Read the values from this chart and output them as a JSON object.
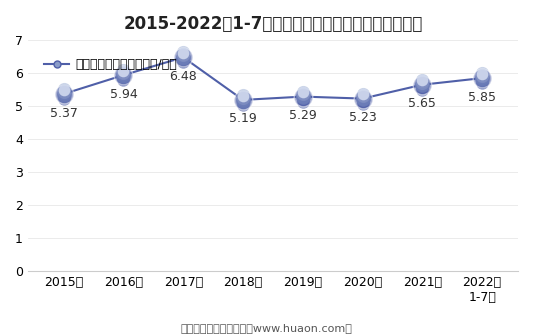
{
  "title": "2015-2022年1-7月郑州商品交易所白糖期货成交均价",
  "legend_label": "白糖期货成交均价（万元/手）",
  "x_labels": [
    "2015年",
    "2016年",
    "2017年",
    "2018年",
    "2019年",
    "2020年",
    "2021年",
    "2022年\n1-7月"
  ],
  "values": [
    5.37,
    5.94,
    6.48,
    5.19,
    5.29,
    5.23,
    5.65,
    5.85
  ],
  "line_color": "#4F5FA8",
  "marker_face_color": "#8A9CC8",
  "marker_edge_color": "#4F5FA8",
  "ylim": [
    0,
    7
  ],
  "yticks": [
    0,
    1,
    2,
    3,
    4,
    5,
    6,
    7
  ],
  "footer": "制图：华经产业研究院（www.huaon.com）",
  "bg_color": "#FFFFFF",
  "title_fontsize": 12,
  "axis_fontsize": 9,
  "value_fontsize": 9,
  "legend_fontsize": 9,
  "footer_fontsize": 8,
  "value_label_color": "#333333",
  "grid_color": "#E8E8E8",
  "spine_color": "#CCCCCC"
}
